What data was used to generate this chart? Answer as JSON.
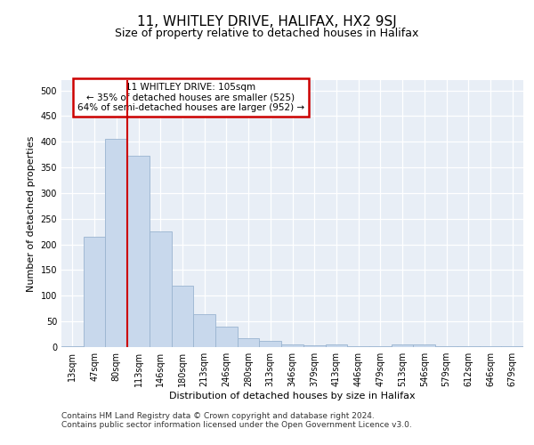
{
  "title": "11, WHITLEY DRIVE, HALIFAX, HX2 9SJ",
  "subtitle": "Size of property relative to detached houses in Halifax",
  "xlabel": "Distribution of detached houses by size in Halifax",
  "ylabel": "Number of detached properties",
  "categories": [
    "13sqm",
    "47sqm",
    "80sqm",
    "113sqm",
    "146sqm",
    "180sqm",
    "213sqm",
    "246sqm",
    "280sqm",
    "313sqm",
    "346sqm",
    "379sqm",
    "413sqm",
    "446sqm",
    "479sqm",
    "513sqm",
    "546sqm",
    "579sqm",
    "612sqm",
    "646sqm",
    "679sqm"
  ],
  "values": [
    2,
    215,
    405,
    372,
    225,
    120,
    64,
    40,
    17,
    12,
    6,
    3,
    5,
    1,
    1,
    6,
    6,
    2,
    1,
    1,
    2
  ],
  "bar_color": "#c8d8ec",
  "bar_edge_color": "#9ab4d0",
  "vline_color": "#cc0000",
  "vline_x": 2.5,
  "annotation_text": "11 WHITLEY DRIVE: 105sqm\n← 35% of detached houses are smaller (525)\n64% of semi-detached houses are larger (952) →",
  "annotation_box_color": "#ffffff",
  "annotation_box_edge_color": "#cc0000",
  "ylim": [
    0,
    520
  ],
  "yticks": [
    0,
    50,
    100,
    150,
    200,
    250,
    300,
    350,
    400,
    450,
    500
  ],
  "bg_color": "#ffffff",
  "plot_bg_color": "#e8eef6",
  "grid_color": "#ffffff",
  "footer_text": "Contains HM Land Registry data © Crown copyright and database right 2024.\nContains public sector information licensed under the Open Government Licence v3.0.",
  "title_fontsize": 11,
  "subtitle_fontsize": 9,
  "label_fontsize": 8,
  "tick_fontsize": 7,
  "annot_fontsize": 7.5,
  "footer_fontsize": 6.5
}
